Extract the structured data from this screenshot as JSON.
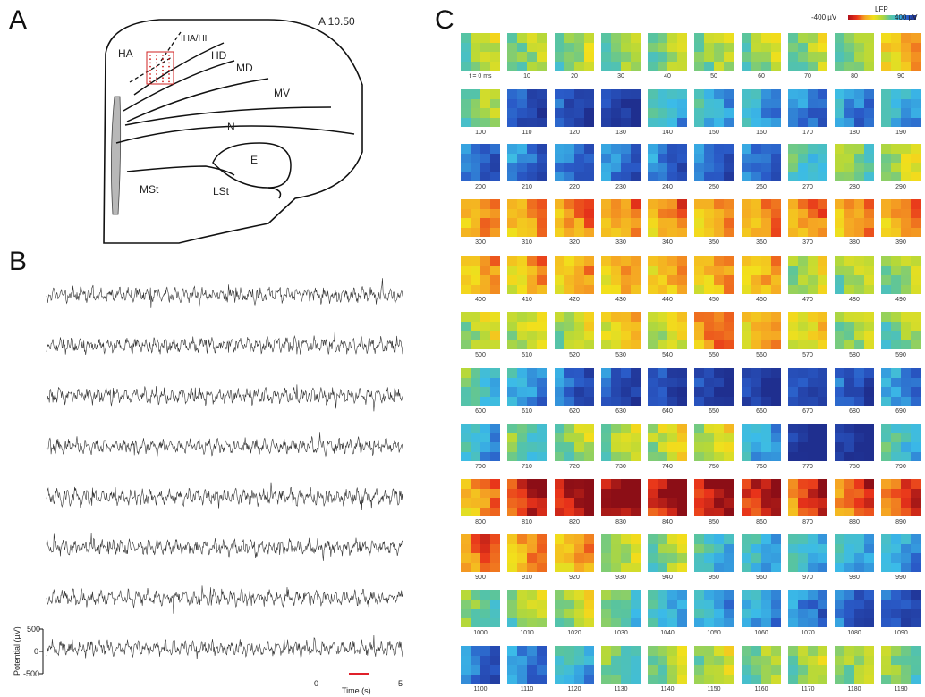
{
  "panels": {
    "a": "A",
    "b": "B",
    "c": "C"
  },
  "panelA": {
    "coordinate": "A 10.50",
    "regions": [
      "HA",
      "IHA/HI",
      "HD",
      "MD",
      "MV",
      "N",
      "E",
      "MSt",
      "LSt"
    ]
  },
  "panelB": {
    "trace_count": 8,
    "y_ticks": [
      "500",
      "0",
      "-500"
    ],
    "y_label": "Potential (µV)",
    "time_label": "Time (s)",
    "time_start": "0",
    "time_end": "5",
    "scalebar_color": "#e0202a"
  },
  "panelC": {
    "colorbar_title": "LFP",
    "colorbar_min": "-400 µV",
    "colorbar_max": "400 µV",
    "frame_labels": [
      "t = 0 ms",
      "10",
      "20",
      "30",
      "40",
      "50",
      "60",
      "70",
      "80",
      "90",
      "100",
      "110",
      "120",
      "130",
      "140",
      "150",
      "160",
      "170",
      "180",
      "190",
      "200",
      "210",
      "220",
      "230",
      "240",
      "250",
      "260",
      "270",
      "280",
      "290",
      "300",
      "310",
      "320",
      "330",
      "340",
      "350",
      "360",
      "370",
      "380",
      "390",
      "400",
      "410",
      "420",
      "430",
      "440",
      "450",
      "460",
      "470",
      "480",
      "490",
      "500",
      "510",
      "520",
      "530",
      "540",
      "550",
      "560",
      "570",
      "580",
      "590",
      "600",
      "610",
      "620",
      "630",
      "640",
      "650",
      "660",
      "670",
      "680",
      "690",
      "700",
      "710",
      "720",
      "730",
      "740",
      "750",
      "760",
      "770",
      "780",
      "790",
      "800",
      "810",
      "820",
      "830",
      "840",
      "850",
      "860",
      "870",
      "880",
      "890",
      "900",
      "910",
      "920",
      "930",
      "940",
      "950",
      "960",
      "970",
      "980",
      "990",
      "1000",
      "1010",
      "1020",
      "1030",
      "1040",
      "1050",
      "1060",
      "1070",
      "1080",
      "1090",
      "1100",
      "1110",
      "1120",
      "1130",
      "1140",
      "1150",
      "1160",
      "1170",
      "1180",
      "1190"
    ],
    "row_levels": [
      0.05,
      -0.55,
      -0.6,
      0.55,
      0.45,
      0.15,
      -0.65,
      -0.35,
      0.85,
      0.2,
      -0.25,
      -0.2
    ],
    "level_overrides": {
      "9": 0.45,
      "10": 0.0,
      "11": -0.75,
      "12": -0.8,
      "13": -0.85,
      "14": -0.3,
      "15": -0.35,
      "16": -0.4,
      "17": -0.55,
      "18": -0.5,
      "19": -0.35,
      "27": -0.25,
      "28": -0.05,
      "29": 0.15,
      "47": 0.15,
      "48": 0.1,
      "49": 0.05,
      "53": 0.35,
      "55": 0.65,
      "56": 0.45,
      "57": 0.3,
      "58": 0.05,
      "59": 0.0,
      "60": -0.2,
      "61": -0.45,
      "62": -0.7,
      "63": -0.75,
      "64": -0.8,
      "65": -0.9,
      "66": -0.9,
      "67": -0.8,
      "68": -0.75,
      "69": -0.5,
      "71": -0.15,
      "72": 0.05,
      "73": 0.1,
      "74": 0.2,
      "75": 0.15,
      "76": -0.4,
      "77": -1.0,
      "78": -0.95,
      "79": -0.25,
      "80": 0.55,
      "81": 0.85,
      "82": 1.0,
      "83": 1.0,
      "84": 0.95,
      "85": 0.95,
      "86": 0.9,
      "87": 0.75,
      "88": 0.7,
      "89": 0.7,
      "90": 0.65,
      "91": 0.55,
      "92": 0.45,
      "93": 0.1,
      "94": 0.05,
      "95": -0.25,
      "96": -0.3,
      "97": -0.3,
      "98": -0.35,
      "99": -0.4,
      "100": -0.05,
      "101": 0.05,
      "102": 0.1,
      "103": -0.1,
      "104": -0.3,
      "105": -0.4,
      "106": -0.45,
      "107": -0.55,
      "108": -0.65,
      "109": -0.7,
      "110": -0.6,
      "111": -0.55,
      "112": -0.3,
      "113": -0.1,
      "114": 0.05,
      "115": 0.1,
      "116": 0.0,
      "117": 0.05,
      "118": 0.05,
      "119": -0.05
    }
  }
}
